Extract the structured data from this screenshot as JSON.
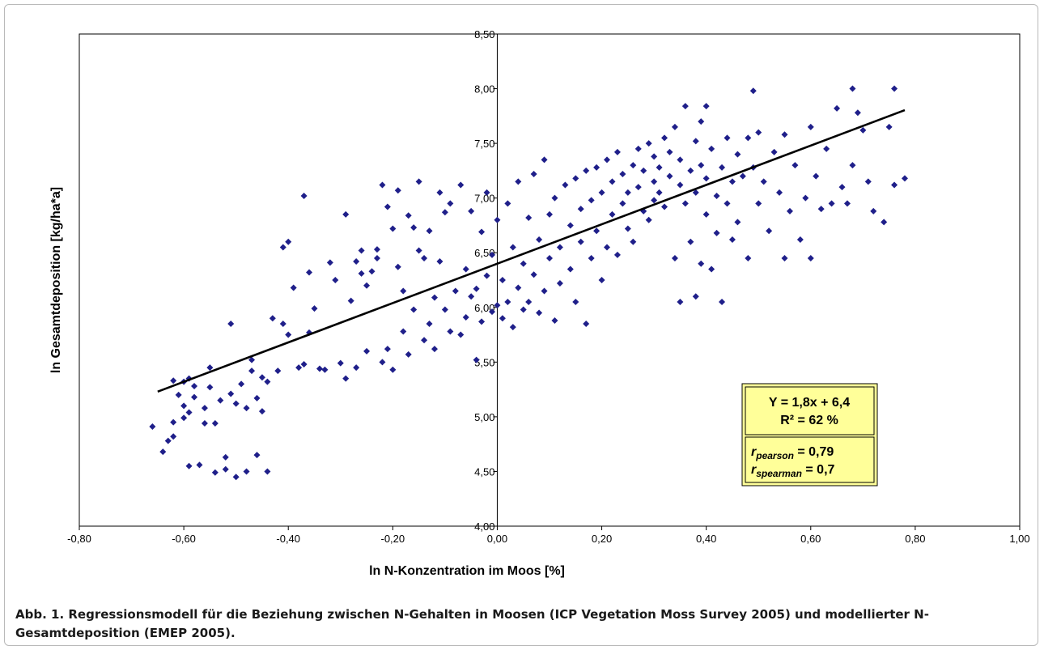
{
  "chart_data": {
    "type": "scatter",
    "title": "",
    "xlabel": "ln N-Konzentration im Moos [%]",
    "ylabel": "ln Gesamtdeposition [kg/ha*a]",
    "xlim": [
      -0.8,
      1.0
    ],
    "ylim": [
      4.0,
      8.5
    ],
    "x_ticks": [
      "-0,80",
      "-0,60",
      "-0,40",
      "-0,20",
      "0,00",
      "0,20",
      "0,40",
      "0,60",
      "0,80",
      "1,00"
    ],
    "y_ticks": [
      "4,00",
      "4,50",
      "5,00",
      "5,50",
      "6,00",
      "6,50",
      "7,00",
      "7,50",
      "8,00",
      "8,50"
    ],
    "grid": false,
    "marker_color": "#1f1f8a",
    "line_color": "#000000",
    "regression": {
      "slope": 1.8,
      "intercept": 6.4,
      "x_range": [
        -0.65,
        0.78
      ]
    },
    "points": [
      [
        -0.66,
        4.91
      ],
      [
        -0.64,
        4.68
      ],
      [
        -0.63,
        4.78
      ],
      [
        -0.62,
        4.82
      ],
      [
        -0.62,
        4.95
      ],
      [
        -0.62,
        5.33
      ],
      [
        -0.61,
        5.2
      ],
      [
        -0.6,
        4.99
      ],
      [
        -0.6,
        5.1
      ],
      [
        -0.6,
        5.32
      ],
      [
        -0.59,
        4.55
      ],
      [
        -0.59,
        5.04
      ],
      [
        -0.59,
        5.35
      ],
      [
        -0.58,
        5.18
      ],
      [
        -0.58,
        5.28
      ],
      [
        -0.57,
        4.56
      ],
      [
        -0.56,
        4.94
      ],
      [
        -0.56,
        5.08
      ],
      [
        -0.55,
        5.27
      ],
      [
        -0.55,
        5.45
      ],
      [
        -0.54,
        4.49
      ],
      [
        -0.54,
        4.94
      ],
      [
        -0.53,
        5.15
      ],
      [
        -0.52,
        4.52
      ],
      [
        -0.52,
        4.63
      ],
      [
        -0.51,
        5.21
      ],
      [
        -0.51,
        5.85
      ],
      [
        -0.5,
        4.45
      ],
      [
        -0.5,
        5.12
      ],
      [
        -0.49,
        5.3
      ],
      [
        -0.48,
        4.5
      ],
      [
        -0.48,
        5.08
      ],
      [
        -0.47,
        5.42
      ],
      [
        -0.47,
        5.52
      ],
      [
        -0.46,
        4.65
      ],
      [
        -0.46,
        5.17
      ],
      [
        -0.45,
        5.05
      ],
      [
        -0.45,
        5.36
      ],
      [
        -0.44,
        4.5
      ],
      [
        -0.44,
        5.32
      ],
      [
        -0.43,
        5.9
      ],
      [
        -0.42,
        5.42
      ],
      [
        -0.41,
        6.55
      ],
      [
        -0.41,
        5.85
      ],
      [
        -0.4,
        6.6
      ],
      [
        -0.4,
        5.75
      ],
      [
        -0.39,
        6.18
      ],
      [
        -0.38,
        5.45
      ],
      [
        -0.37,
        5.48
      ],
      [
        -0.37,
        7.02
      ],
      [
        -0.36,
        6.32
      ],
      [
        -0.36,
        5.77
      ],
      [
        -0.35,
        5.99
      ],
      [
        -0.34,
        5.44
      ],
      [
        -0.33,
        5.43
      ],
      [
        -0.32,
        6.41
      ],
      [
        -0.31,
        6.25
      ],
      [
        -0.3,
        5.49
      ],
      [
        -0.29,
        6.85
      ],
      [
        -0.29,
        5.35
      ],
      [
        -0.28,
        6.06
      ],
      [
        -0.27,
        6.42
      ],
      [
        -0.27,
        5.45
      ],
      [
        -0.26,
        6.52
      ],
      [
        -0.26,
        6.31
      ],
      [
        -0.25,
        6.2
      ],
      [
        -0.25,
        5.6
      ],
      [
        -0.24,
        6.33
      ],
      [
        -0.23,
        6.53
      ],
      [
        -0.23,
        6.45
      ],
      [
        -0.22,
        5.5
      ],
      [
        -0.22,
        7.12
      ],
      [
        -0.21,
        6.92
      ],
      [
        -0.21,
        5.62
      ],
      [
        -0.2,
        6.72
      ],
      [
        -0.2,
        5.43
      ],
      [
        -0.19,
        7.07
      ],
      [
        -0.19,
        6.37
      ],
      [
        -0.18,
        6.15
      ],
      [
        -0.18,
        5.78
      ],
      [
        -0.17,
        6.84
      ],
      [
        -0.17,
        5.57
      ],
      [
        -0.16,
        5.98
      ],
      [
        -0.16,
        6.73
      ],
      [
        -0.15,
        7.15
      ],
      [
        -0.15,
        6.52
      ],
      [
        -0.14,
        5.7
      ],
      [
        -0.14,
        6.45
      ],
      [
        -0.13,
        5.85
      ],
      [
        -0.13,
        6.7
      ],
      [
        -0.12,
        6.09
      ],
      [
        -0.12,
        5.62
      ],
      [
        -0.11,
        6.42
      ],
      [
        -0.11,
        7.05
      ],
      [
        -0.1,
        6.87
      ],
      [
        -0.1,
        5.98
      ],
      [
        -0.09,
        5.78
      ],
      [
        -0.09,
        6.95
      ],
      [
        -0.08,
        6.15
      ],
      [
        -0.07,
        5.75
      ],
      [
        -0.07,
        7.12
      ],
      [
        -0.06,
        6.35
      ],
      [
        -0.06,
        5.91
      ],
      [
        -0.05,
        6.1
      ],
      [
        -0.05,
        6.88
      ],
      [
        -0.04,
        5.52
      ],
      [
        -0.04,
        6.17
      ],
      [
        -0.03,
        6.69
      ],
      [
        -0.03,
        5.87
      ],
      [
        -0.02,
        7.05
      ],
      [
        -0.02,
        6.29
      ],
      [
        -0.01,
        5.96
      ],
      [
        -0.01,
        6.48
      ],
      [
        0.0,
        6.02
      ],
      [
        0.0,
        6.8
      ],
      [
        0.01,
        5.9
      ],
      [
        0.01,
        6.25
      ],
      [
        0.02,
        6.95
      ],
      [
        0.02,
        6.05
      ],
      [
        0.03,
        5.82
      ],
      [
        0.03,
        6.55
      ],
      [
        0.04,
        6.18
      ],
      [
        0.04,
        7.15
      ],
      [
        0.05,
        5.98
      ],
      [
        0.05,
        6.4
      ],
      [
        0.06,
        6.82
      ],
      [
        0.06,
        6.05
      ],
      [
        0.07,
        6.3
      ],
      [
        0.07,
        7.22
      ],
      [
        0.08,
        5.95
      ],
      [
        0.08,
        6.62
      ],
      [
        0.09,
        6.15
      ],
      [
        0.09,
        7.35
      ],
      [
        0.1,
        6.45
      ],
      [
        0.1,
        6.85
      ],
      [
        0.11,
        5.88
      ],
      [
        0.11,
        7.0
      ],
      [
        0.12,
        6.55
      ],
      [
        0.12,
        6.22
      ],
      [
        0.13,
        7.12
      ],
      [
        0.14,
        6.35
      ],
      [
        0.14,
        6.75
      ],
      [
        0.15,
        6.05
      ],
      [
        0.15,
        7.18
      ],
      [
        0.16,
        6.6
      ],
      [
        0.16,
        6.9
      ],
      [
        0.17,
        5.85
      ],
      [
        0.17,
        7.25
      ],
      [
        0.18,
        6.45
      ],
      [
        0.18,
        6.98
      ],
      [
        0.19,
        6.7
      ],
      [
        0.19,
        7.28
      ],
      [
        0.2,
        6.25
      ],
      [
        0.2,
        7.05
      ],
      [
        0.21,
        6.55
      ],
      [
        0.21,
        7.35
      ],
      [
        0.22,
        6.85
      ],
      [
        0.22,
        7.15
      ],
      [
        0.23,
        6.48
      ],
      [
        0.23,
        7.42
      ],
      [
        0.24,
        6.95
      ],
      [
        0.24,
        7.22
      ],
      [
        0.25,
        6.72
      ],
      [
        0.25,
        7.05
      ],
      [
        0.26,
        7.3
      ],
      [
        0.26,
        6.6
      ],
      [
        0.27,
        7.45
      ],
      [
        0.27,
        7.1
      ],
      [
        0.28,
        6.88
      ],
      [
        0.28,
        7.25
      ],
      [
        0.29,
        7.5
      ],
      [
        0.29,
        6.8
      ],
      [
        0.3,
        7.15
      ],
      [
        0.3,
        7.38
      ],
      [
        0.3,
        6.98
      ],
      [
        0.31,
        7.28
      ],
      [
        0.31,
        7.05
      ],
      [
        0.32,
        7.55
      ],
      [
        0.32,
        6.92
      ],
      [
        0.33,
        7.2
      ],
      [
        0.33,
        7.42
      ],
      [
        0.34,
        6.45
      ],
      [
        0.34,
        7.65
      ],
      [
        0.35,
        7.12
      ],
      [
        0.35,
        6.05
      ],
      [
        0.35,
        7.35
      ],
      [
        0.36,
        7.84
      ],
      [
        0.36,
        6.95
      ],
      [
        0.37,
        7.25
      ],
      [
        0.37,
        6.6
      ],
      [
        0.38,
        7.52
      ],
      [
        0.38,
        6.1
      ],
      [
        0.38,
        7.05
      ],
      [
        0.39,
        7.3
      ],
      [
        0.39,
        6.4
      ],
      [
        0.39,
        7.7
      ],
      [
        0.4,
        6.85
      ],
      [
        0.4,
        7.18
      ],
      [
        0.4,
        7.84
      ],
      [
        0.41,
        6.35
      ],
      [
        0.41,
        7.45
      ],
      [
        0.42,
        7.02
      ],
      [
        0.42,
        6.68
      ],
      [
        0.43,
        7.28
      ],
      [
        0.43,
        6.05
      ],
      [
        0.44,
        7.55
      ],
      [
        0.44,
        6.95
      ],
      [
        0.45,
        7.15
      ],
      [
        0.45,
        6.62
      ],
      [
        0.46,
        7.4
      ],
      [
        0.46,
        6.78
      ],
      [
        0.47,
        7.2
      ],
      [
        0.48,
        7.55
      ],
      [
        0.48,
        6.45
      ],
      [
        0.49,
        7.98
      ],
      [
        0.49,
        7.28
      ],
      [
        0.5,
        6.95
      ],
      [
        0.5,
        7.6
      ],
      [
        0.51,
        7.15
      ],
      [
        0.52,
        6.7
      ],
      [
        0.53,
        7.42
      ],
      [
        0.54,
        7.05
      ],
      [
        0.55,
        6.45
      ],
      [
        0.55,
        7.58
      ],
      [
        0.56,
        6.88
      ],
      [
        0.57,
        7.3
      ],
      [
        0.58,
        6.62
      ],
      [
        0.59,
        7.0
      ],
      [
        0.6,
        7.65
      ],
      [
        0.6,
        6.45
      ],
      [
        0.61,
        7.2
      ],
      [
        0.62,
        6.9
      ],
      [
        0.63,
        7.45
      ],
      [
        0.64,
        6.95
      ],
      [
        0.65,
        7.82
      ],
      [
        0.66,
        7.1
      ],
      [
        0.67,
        6.95
      ],
      [
        0.68,
        8.0
      ],
      [
        0.68,
        7.3
      ],
      [
        0.69,
        7.78
      ],
      [
        0.7,
        7.62
      ],
      [
        0.71,
        7.15
      ],
      [
        0.72,
        6.88
      ],
      [
        0.74,
        6.78
      ],
      [
        0.75,
        7.65
      ],
      [
        0.76,
        8.0
      ],
      [
        0.76,
        7.12
      ],
      [
        0.78,
        7.18
      ]
    ],
    "annotation": {
      "line1": "Y = 1,8x + 6,4",
      "line2": "R² = 62 %",
      "pearson_sym": "r",
      "pearson_sub": "pearson",
      "pearson_val": " = 0,79",
      "spearman_sym": "r",
      "spearman_sub": "spearman",
      "spearman_val": " = 0,7"
    }
  },
  "caption": "Abb. 1. Regressionsmodell für die Beziehung zwischen N-Gehalten in Moosen (ICP Vegetation Moss Survey 2005) und modellierter N-Gesamtdeposition (EMEP 2005)."
}
